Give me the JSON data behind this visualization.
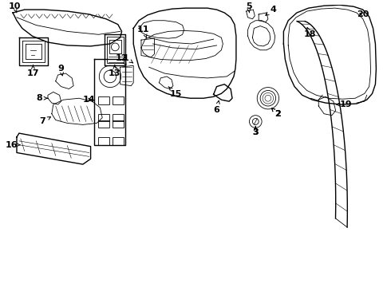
{
  "background_color": "#ffffff",
  "line_color": "#000000",
  "lw_main": 1.0,
  "lw_thin": 0.6,
  "label_fontsize": 8
}
